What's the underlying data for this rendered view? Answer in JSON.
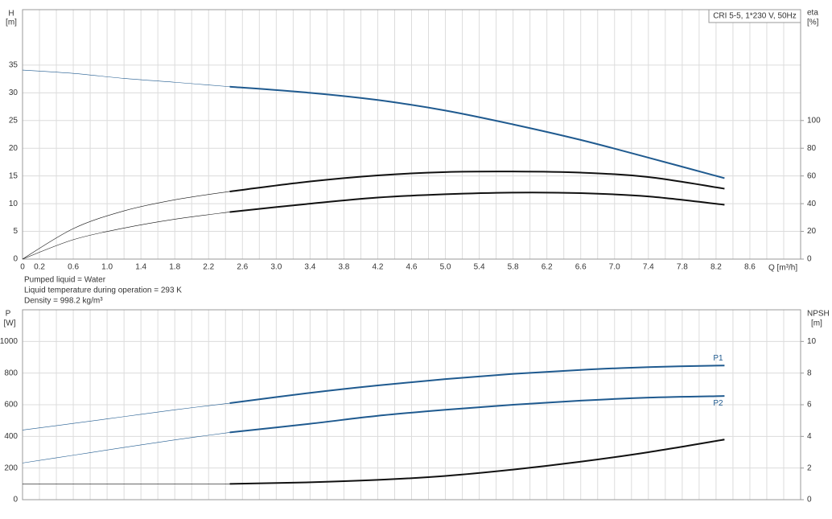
{
  "chart_data": [
    {
      "type": "line",
      "title": "CRI 5-5, 1*230 V, 50Hz",
      "ylabel": "H",
      "yunit": "[m]",
      "y2label": "eta",
      "y2unit": "[%]",
      "xlabel": "Q [m³/h]",
      "notes": [
        "Pumped liquid = Water",
        "Liquid temperature during operation = 293 K",
        "Density = 998.2 kg/m³"
      ],
      "xlim": [
        0,
        9.2
      ],
      "xticks": [
        0,
        0.2,
        0.6,
        {
          "value": 1,
          "label": "1.0"
        },
        1.4,
        1.8,
        2.2,
        2.6,
        {
          "value": 3,
          "label": "3.0"
        },
        3.4,
        3.8,
        4.2,
        4.6,
        {
          "value": 5,
          "label": "5.0"
        },
        5.4,
        5.8,
        6.2,
        6.6,
        {
          "value": 7,
          "label": "7.0"
        },
        7.4,
        7.8,
        8.2,
        8.6
      ],
      "ylim": [
        0,
        45
      ],
      "yticks": [
        0,
        5,
        10,
        15,
        20,
        25,
        30,
        35
      ],
      "y2lim": [
        0,
        180
      ],
      "y2ticks": [
        0,
        20,
        40,
        60,
        80,
        100
      ],
      "grid": true,
      "operating_start": 2.45,
      "x": [
        0,
        0.6,
        1.2,
        1.8,
        2.45,
        3.4,
        4.2,
        5.0,
        5.8,
        6.6,
        7.4,
        8.3
      ],
      "series": [
        {
          "color": "#1f5a8f",
          "axis": "y",
          "values": [
            34.1,
            33.5,
            32.6,
            31.9,
            31.1,
            30.0,
            28.7,
            26.8,
            24.3,
            21.5,
            18.3,
            14.6
          ]
        },
        {
          "color": "#111111",
          "axis": "y2",
          "values": [
            0,
            22,
            34.8,
            42.8,
            48.8,
            56,
            60.4,
            62.8,
            63.2,
            62.4,
            59.2,
            50.8
          ]
        },
        {
          "color": "#111111",
          "axis": "y2",
          "values": [
            0,
            14,
            22.4,
            28.8,
            34,
            40,
            44.4,
            46.8,
            48,
            47.6,
            45.2,
            39.2
          ]
        }
      ]
    },
    {
      "type": "line",
      "ylabel": "P",
      "yunit": "[W]",
      "y2label": "NPSH",
      "y2unit": "[m]",
      "xlim": [
        0,
        9.2
      ],
      "xticks": [
        0,
        0.2,
        0.6,
        1,
        1.4,
        1.8,
        2.2,
        2.6,
        3,
        3.4,
        3.8,
        4.2,
        4.6,
        5,
        5.4,
        5.8,
        6.2,
        6.6,
        7,
        7.4,
        7.8,
        8.2,
        8.6
      ],
      "ylim": [
        0,
        1200
      ],
      "yticks": [
        0,
        200,
        400,
        600,
        800,
        1000
      ],
      "y2lim": [
        0,
        12
      ],
      "y2ticks": [
        0,
        2,
        4,
        6,
        8,
        10
      ],
      "grid": true,
      "operating_start": 2.45,
      "x": [
        0,
        0.6,
        1.2,
        1.8,
        2.45,
        3.4,
        4.2,
        5.0,
        5.8,
        6.6,
        7.4,
        8.3
      ],
      "series": [
        {
          "name": "P1",
          "color": "#1f5a8f",
          "axis": "y",
          "values": [
            440,
            482,
            525,
            568,
            610,
            675,
            722,
            762,
            795,
            820,
            838,
            848
          ]
        },
        {
          "name": "P2",
          "color": "#1f5a8f",
          "axis": "y",
          "values": [
            232,
            281,
            330,
            378,
            425,
            480,
            530,
            568,
            600,
            626,
            645,
            655
          ]
        },
        {
          "color": "#111111",
          "axis": "y2",
          "values": [
            1.0,
            1.0,
            1.0,
            1.0,
            1.0,
            1.1,
            1.25,
            1.5,
            1.9,
            2.4,
            3.0,
            3.8
          ]
        }
      ]
    }
  ]
}
